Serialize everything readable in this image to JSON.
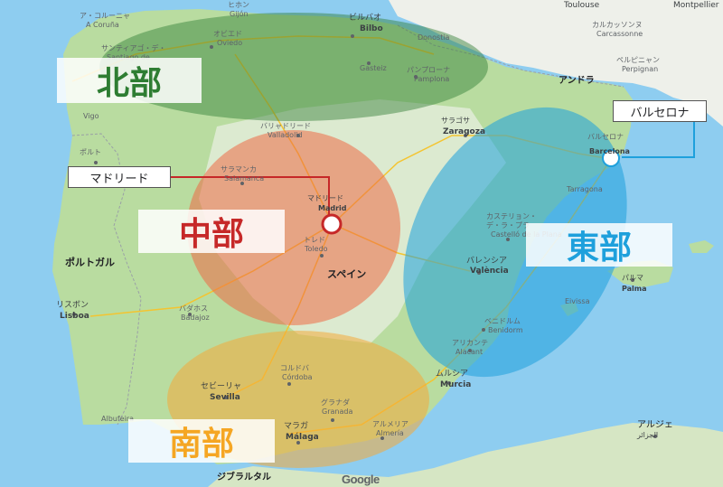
{
  "regions": {
    "north": {
      "label": "北部",
      "color": "#2e7d32"
    },
    "central": {
      "label": "中部",
      "color": "#c62828"
    },
    "east": {
      "label": "東部",
      "color": "#1ea0dc"
    },
    "south": {
      "label": "南部",
      "color": "#f5a623"
    }
  },
  "callouts": {
    "madrid": "マドリード",
    "barcelona": "バルセロナ"
  },
  "map_labels": {
    "spain": "スペイン",
    "portugal": "ポルトガル",
    "andorra": "アンドラ",
    "gibraltar": "ジブラルタル",
    "algeria": "アルジェ",
    "algeria_ar": "الجزائر",
    "toulouse": "Toulouse",
    "montpellier": "Montpellier",
    "carcassonne_ja": "カルカッソンヌ",
    "carcassonne": "Carcassonne",
    "perpignan_ja": "ペルピニャン",
    "perpignan": "Perpignan",
    "bilbao_ja": "ビルバオ",
    "bilbao": "Bilbo",
    "oviedo_ja": "オビエド",
    "oviedo": "Oviedo",
    "gijon_ja": "ヒホン",
    "gijon": "Gijón",
    "coruna_ja": "ア・コルーニャ",
    "coruna": "A Coruña",
    "santiago_ja": "サンティアゴ・デ・",
    "santiago": "Santiago de",
    "vigo": "Vigo",
    "donostia": "Donostia",
    "gasteiz": "Gasteiz",
    "pamplona_ja": "パンプローナ",
    "pamplona": "Pamplona",
    "zaragoza_ja": "サラゴサ",
    "zaragoza": "Zaragoza",
    "valladolid_ja": "バリャドリード",
    "valladolid": "Valladolid",
    "salamanca_ja": "サラマンカ",
    "salamanca": "Salamanca",
    "madrid_ja": "マドリード",
    "madrid": "Madrid",
    "toledo_ja": "トレド",
    "toledo": "Toledo",
    "barcelona_ja": "バルセロナ",
    "barcelona": "Barcelona",
    "tarragona": "Tarragona",
    "castellon_ja": "カステリョン・",
    "castellon_ja2": "デ・ラ・プラ",
    "castellon": "Castelló de la Plana",
    "valencia_ja": "バレンシア",
    "valencia": "València",
    "palma_ja": "パルマ",
    "palma": "Palma",
    "ibiza": "Eivissa",
    "benidorm_ja": "ベニドルム",
    "benidorm": "Benidorm",
    "alicante_ja": "アリカンテ",
    "alicante": "Alacant",
    "murcia_ja": "ムルシア",
    "murcia": "Murcia",
    "badajoz_ja": "バダホス",
    "badajoz": "Badajoz",
    "lisbon_ja": "リスボン",
    "lisbon": "Lisboa",
    "porto": "ポルト",
    "cordoba_ja": "コルドバ",
    "cordoba": "Córdoba",
    "seville_ja": "セビーリャ",
    "seville": "Sevilla",
    "granada_ja": "グラナダ",
    "granada": "Granada",
    "malaga_ja": "マラガ",
    "malaga": "Málaga",
    "almeria_ja": "アルメリア",
    "almeria": "Almería",
    "albufeira": "Albufeira",
    "google": "Google"
  }
}
